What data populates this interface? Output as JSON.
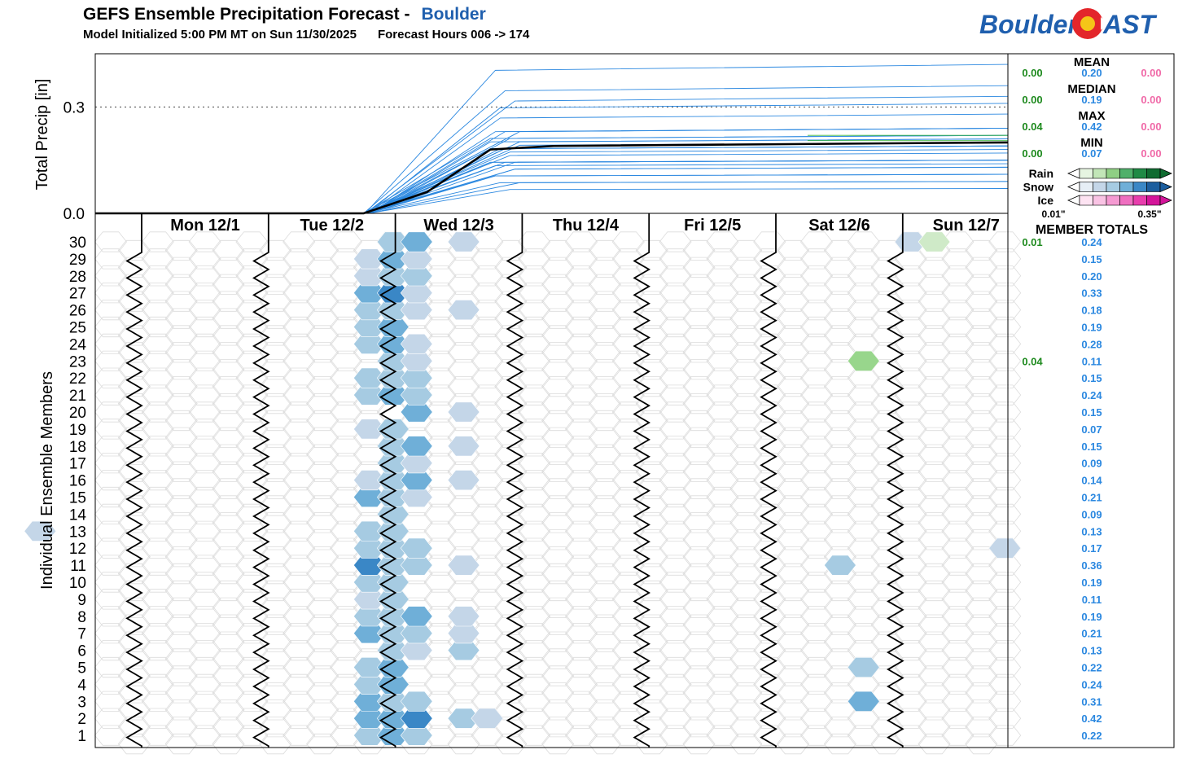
{
  "header": {
    "title": "GEFS Ensemble Precipitation Forecast -",
    "location": "Boulder",
    "init": "Model Initialized 5:00 PM MT on Sun 11/30/2025",
    "hours": "Forecast Hours 006 -> 174"
  },
  "logo": {
    "left": "Boulder",
    "right": "AST"
  },
  "colors": {
    "snow_ramp": [
      "#c4d6e8",
      "#a6cbe2",
      "#6fafd8",
      "#3a87c6"
    ],
    "rain_ramp": [
      "#cfeac8",
      "#98d68c"
    ],
    "mean_line": "#000000",
    "member_line": "#2b88e0",
    "rain_line": "#3cb73c",
    "rain_text": "#1e8a1e",
    "snow_text": "#2b88e0",
    "ice_text": "#f06aa8"
  },
  "chart_data": [
    {
      "type": "line",
      "ylabel": "Total Precip [in]",
      "yticks": [
        "0.0",
        "0.3"
      ],
      "ylim": [
        0,
        0.45
      ],
      "reference_line": 0.3,
      "x_forecast_hours": [
        6,
        174
      ],
      "mean": {
        "x": [
          6,
          66,
          78,
          90,
          102,
          174
        ],
        "y": [
          0,
          0,
          0.06,
          0.18,
          0.19,
          0.2
        ]
      },
      "members_total": [
        0.22,
        0.42,
        0.31,
        0.24,
        0.22,
        0.13,
        0.21,
        0.19,
        0.11,
        0.19,
        0.36,
        0.17,
        0.13,
        0.09,
        0.21,
        0.14,
        0.09,
        0.15,
        0.07,
        0.15,
        0.24,
        0.15,
        0.11,
        0.28,
        0.19,
        0.18,
        0.33,
        0.2,
        0.15,
        0.24
      ],
      "summary": {
        "mean": {
          "label": "MEAN",
          "rain": "0.00",
          "snow": "0.20",
          "ice": "0.00"
        },
        "median": {
          "label": "MEDIAN",
          "rain": "0.00",
          "snow": "0.19",
          "ice": "0.00"
        },
        "max": {
          "label": "MAX",
          "rain": "0.04",
          "snow": "0.42",
          "ice": "0.00"
        },
        "min": {
          "label": "MIN",
          "rain": "0.00",
          "snow": "0.07",
          "ice": "0.00"
        }
      }
    },
    {
      "type": "heatmap",
      "ylabel": "Individual Ensemble Members",
      "days": [
        "Mon 12/1",
        "Tue 12/2",
        "Wed 12/3",
        "Thu 12/4",
        "Fri 12/5",
        "Sat 12/6",
        "Sun 12/7"
      ],
      "members": [
        30,
        29,
        28,
        27,
        26,
        25,
        24,
        23,
        22,
        21,
        20,
        19,
        18,
        17,
        16,
        15,
        14,
        13,
        12,
        11,
        10,
        9,
        8,
        7,
        6,
        5,
        4,
        3,
        2,
        1
      ],
      "cells_hour_member_intensity": [
        [
          66,
          1,
          2
        ],
        [
          72,
          1,
          3
        ],
        [
          78,
          1,
          2
        ],
        [
          66,
          2,
          3
        ],
        [
          72,
          2,
          3
        ],
        [
          78,
          2,
          4
        ],
        [
          84,
          2,
          2
        ],
        [
          90,
          2,
          1
        ],
        [
          66,
          3,
          3
        ],
        [
          72,
          3,
          2
        ],
        [
          78,
          3,
          2
        ],
        [
          66,
          4,
          2
        ],
        [
          72,
          4,
          3
        ],
        [
          66,
          5,
          2
        ],
        [
          72,
          5,
          3
        ],
        [
          72,
          6,
          2
        ],
        [
          78,
          6,
          1
        ],
        [
          84,
          6,
          2
        ],
        [
          66,
          7,
          3
        ],
        [
          72,
          7,
          2
        ],
        [
          78,
          7,
          2
        ],
        [
          84,
          7,
          1
        ],
        [
          66,
          8,
          2
        ],
        [
          72,
          8,
          2
        ],
        [
          78,
          8,
          3
        ],
        [
          84,
          8,
          1
        ],
        [
          66,
          9,
          1
        ],
        [
          72,
          9,
          2
        ],
        [
          66,
          10,
          2
        ],
        [
          72,
          10,
          2
        ],
        [
          66,
          11,
          4
        ],
        [
          72,
          11,
          2
        ],
        [
          78,
          11,
          2
        ],
        [
          84,
          11,
          1
        ],
        [
          66,
          12,
          2
        ],
        [
          72,
          12,
          2
        ],
        [
          78,
          12,
          2
        ],
        [
          66,
          13,
          2
        ],
        [
          72,
          13,
          2
        ],
        [
          72,
          14,
          2
        ],
        [
          66,
          15,
          3
        ],
        [
          72,
          15,
          2
        ],
        [
          78,
          15,
          1
        ],
        [
          66,
          16,
          1
        ],
        [
          72,
          16,
          2
        ],
        [
          78,
          16,
          3
        ],
        [
          84,
          16,
          1
        ],
        [
          72,
          17,
          2
        ],
        [
          78,
          17,
          1
        ],
        [
          72,
          18,
          2
        ],
        [
          78,
          18,
          3
        ],
        [
          84,
          18,
          1
        ],
        [
          66,
          19,
          1
        ],
        [
          72,
          19,
          2
        ],
        [
          78,
          20,
          3
        ],
        [
          84,
          20,
          1
        ],
        [
          66,
          21,
          2
        ],
        [
          72,
          21,
          3
        ],
        [
          78,
          21,
          2
        ],
        [
          66,
          22,
          2
        ],
        [
          72,
          22,
          2
        ],
        [
          78,
          22,
          2
        ],
        [
          72,
          23,
          2
        ],
        [
          78,
          23,
          1
        ],
        [
          66,
          24,
          2
        ],
        [
          72,
          24,
          3
        ],
        [
          78,
          24,
          1
        ],
        [
          66,
          25,
          2
        ],
        [
          72,
          25,
          3
        ],
        [
          66,
          26,
          2
        ],
        [
          72,
          26,
          2
        ],
        [
          78,
          26,
          1
        ],
        [
          84,
          26,
          1
        ],
        [
          66,
          27,
          3
        ],
        [
          72,
          27,
          4
        ],
        [
          78,
          27,
          1
        ],
        [
          66,
          28,
          1
        ],
        [
          72,
          28,
          2
        ],
        [
          78,
          28,
          2
        ],
        [
          66,
          29,
          1
        ],
        [
          72,
          29,
          3
        ],
        [
          78,
          29,
          1
        ],
        [
          72,
          30,
          2
        ],
        [
          78,
          30,
          3
        ],
        [
          84,
          30,
          1
        ],
        [
          6,
          13,
          1
        ],
        [
          156,
          11,
          2
        ],
        [
          186,
          12,
          1
        ],
        [
          162,
          5,
          2
        ],
        [
          162,
          3,
          3
        ],
        [
          168,
          30,
          1
        ]
      ],
      "rain_cells_hour_member_intensity": [
        [
          162,
          23,
          2
        ],
        [
          174,
          30,
          1
        ]
      ],
      "member_totals": {
        "title": "MEMBER TOTALS",
        "rows": [
          {
            "member": 30,
            "rain": "0.01",
            "snow": "0.24"
          },
          {
            "member": 29,
            "rain": "",
            "snow": "0.15"
          },
          {
            "member": 28,
            "rain": "",
            "snow": "0.20"
          },
          {
            "member": 27,
            "rain": "",
            "snow": "0.33"
          },
          {
            "member": 26,
            "rain": "",
            "snow": "0.18"
          },
          {
            "member": 25,
            "rain": "",
            "snow": "0.19"
          },
          {
            "member": 24,
            "rain": "",
            "snow": "0.28"
          },
          {
            "member": 23,
            "rain": "0.04",
            "snow": "0.11"
          },
          {
            "member": 22,
            "rain": "",
            "snow": "0.15"
          },
          {
            "member": 21,
            "rain": "",
            "snow": "0.24"
          },
          {
            "member": 20,
            "rain": "",
            "snow": "0.15"
          },
          {
            "member": 19,
            "rain": "",
            "snow": "0.07"
          },
          {
            "member": 18,
            "rain": "",
            "snow": "0.15"
          },
          {
            "member": 17,
            "rain": "",
            "snow": "0.09"
          },
          {
            "member": 16,
            "rain": "",
            "snow": "0.14"
          },
          {
            "member": 15,
            "rain": "",
            "snow": "0.21"
          },
          {
            "member": 14,
            "rain": "",
            "snow": "0.09"
          },
          {
            "member": 13,
            "rain": "",
            "snow": "0.13"
          },
          {
            "member": 12,
            "rain": "",
            "snow": "0.17"
          },
          {
            "member": 11,
            "rain": "",
            "snow": "0.36"
          },
          {
            "member": 10,
            "rain": "",
            "snow": "0.19"
          },
          {
            "member": 9,
            "rain": "",
            "snow": "0.11"
          },
          {
            "member": 8,
            "rain": "",
            "snow": "0.19"
          },
          {
            "member": 7,
            "rain": "",
            "snow": "0.21"
          },
          {
            "member": 6,
            "rain": "",
            "snow": "0.13"
          },
          {
            "member": 5,
            "rain": "",
            "snow": "0.22"
          },
          {
            "member": 4,
            "rain": "",
            "snow": "0.24"
          },
          {
            "member": 3,
            "rain": "",
            "snow": "0.31"
          },
          {
            "member": 2,
            "rain": "",
            "snow": "0.42"
          },
          {
            "member": 1,
            "rain": "",
            "snow": "0.22"
          }
        ]
      }
    }
  ],
  "legend": {
    "rows": [
      "Rain",
      "Snow",
      "Ice"
    ],
    "min_label": "0.01\"",
    "max_label": "0.35\"",
    "rain_colors": [
      "#e6f5e1",
      "#c2e6b7",
      "#8fcf84",
      "#4fb06a",
      "#1f8a45",
      "#0f6b30"
    ],
    "snow_colors": [
      "#e6eef6",
      "#c4d6e8",
      "#a6cbe2",
      "#6fafd8",
      "#3a87c6",
      "#1c5e9e"
    ],
    "ice_colors": [
      "#fde3f2",
      "#f9c3e4",
      "#f59ad2",
      "#ef6fc0",
      "#e83ead",
      "#d4159a"
    ]
  }
}
